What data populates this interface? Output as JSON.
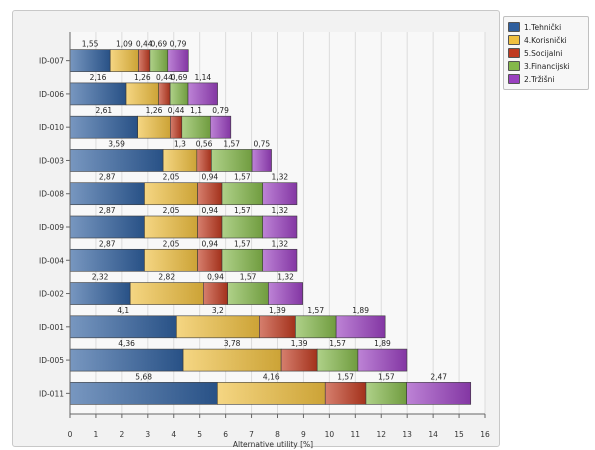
{
  "chart_data": {
    "type": "bar",
    "orientation": "horizontal",
    "stacked": true,
    "categories": [
      "ID-011",
      "ID-005",
      "ID-001",
      "ID-002",
      "ID-004",
      "ID-009",
      "ID-008",
      "ID-003",
      "ID-010",
      "ID-006",
      "ID-007"
    ],
    "series": [
      {
        "name": "1.Tehnički",
        "color": "#2f5f9e",
        "values": [
          5.68,
          4.36,
          4.1,
          2.32,
          2.87,
          2.87,
          2.87,
          3.59,
          2.61,
          2.16,
          1.55
        ]
      },
      {
        "name": "4.Korisnički",
        "color": "#f0c040",
        "values": [
          4.16,
          3.78,
          3.2,
          2.82,
          2.05,
          2.05,
          2.05,
          1.3,
          1.26,
          1.26,
          1.09
        ]
      },
      {
        "name": "5.Socijalni",
        "color": "#c03a20",
        "values": [
          1.57,
          1.39,
          1.39,
          0.94,
          0.94,
          0.94,
          0.94,
          0.56,
          0.44,
          0.44,
          0.44
        ]
      },
      {
        "name": "3.Financijski",
        "color": "#84b84a",
        "values": [
          1.57,
          1.57,
          1.57,
          1.57,
          1.57,
          1.57,
          1.57,
          1.57,
          1.1,
          0.69,
          0.69
        ]
      },
      {
        "name": "2.Tržišni",
        "color": "#9a40c0",
        "values": [
          2.47,
          1.89,
          1.89,
          1.32,
          1.32,
          1.32,
          1.32,
          0.75,
          0.79,
          1.14,
          0.79
        ]
      }
    ],
    "data_labels": [
      [
        "5,68",
        "4,16",
        "1,57",
        "1,57",
        "2,47"
      ],
      [
        "4,36",
        "3,78",
        "1,39",
        "1,57",
        "1,89"
      ],
      [
        "4,1",
        "3,2",
        "1,39",
        "1,57",
        "1,89"
      ],
      [
        "2,32",
        "2,82",
        "0,94",
        "1,57",
        "1,32"
      ],
      [
        "2,87",
        "2,05",
        "0,94",
        "1,57",
        "1,32"
      ],
      [
        "2,87",
        "2,05",
        "0,94",
        "1,57",
        "1,32"
      ],
      [
        "2,87",
        "2,05",
        "0,94",
        "1,57",
        "1,32"
      ],
      [
        "3,59",
        "1,3",
        "0,56",
        "1,57",
        "0,75"
      ],
      [
        "2,61",
        "1,26",
        "0,44",
        "1,1",
        "0,79"
      ],
      [
        "2,16",
        "1,26",
        "0,44",
        "0,69",
        "1,14"
      ],
      [
        "1,55",
        "1,09",
        "0,44",
        "0,69",
        "0,79"
      ]
    ],
    "xlabel": "Alternative utility [%]",
    "ylabel": "",
    "xlim": [
      0,
      16
    ],
    "xticks": [
      "0",
      "1",
      "2",
      "3",
      "4",
      "5",
      "6",
      "7",
      "8",
      "9",
      "10",
      "11",
      "12",
      "13",
      "14",
      "15",
      "16"
    ],
    "grid": true,
    "legend_position": "right",
    "legend_order": [
      "1.Tehnički",
      "4.Korisnički",
      "5.Socijalni",
      "3.Financijski",
      "2.Tržišni"
    ]
  }
}
